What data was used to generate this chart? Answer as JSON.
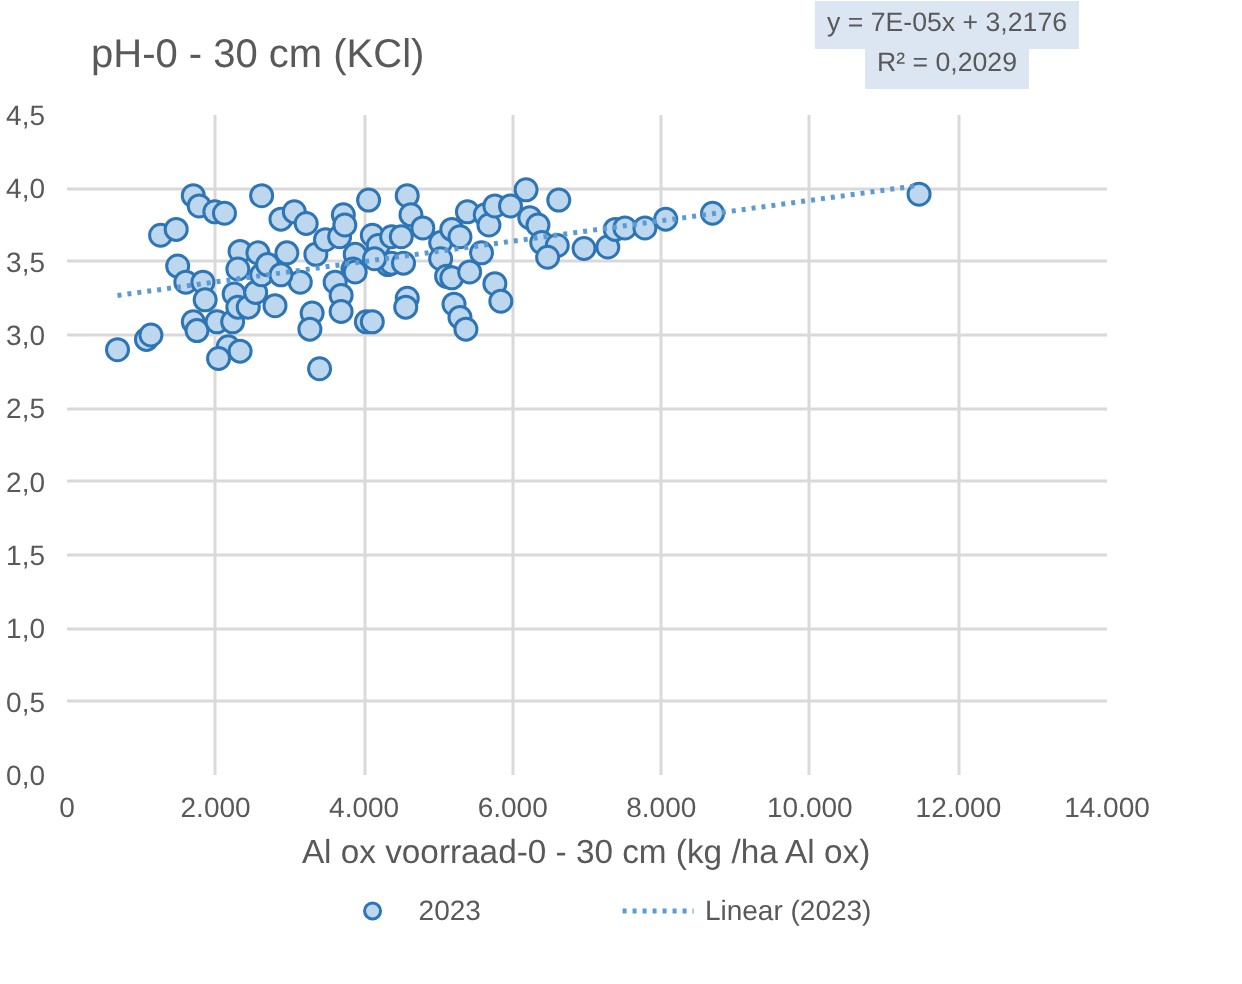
{
  "chart_data": {
    "type": "scatter",
    "title": "pH-0 - 30 cm (KCl)",
    "xlabel": "Al ox voorraad-0 - 30 cm (kg /ha Al ox)",
    "annotations": [
      "y = 7E-05x + 3,2176",
      "R² = 0,2029"
    ],
    "xlim": [
      0,
      14000
    ],
    "ylim": [
      0,
      4.5
    ],
    "xticks": [
      0,
      {
        "value": 2000,
        "label": "2.000"
      },
      {
        "value": 4000,
        "label": "4.000"
      },
      {
        "value": 6000,
        "label": "6.000"
      },
      {
        "value": 8000,
        "label": "8.000"
      },
      {
        "value": 10000,
        "label": "10.000"
      },
      {
        "value": 12000,
        "label": "12.000"
      },
      {
        "value": 14000,
        "label": "14.000"
      }
    ],
    "yticks": [
      {
        "value": 0,
        "label": "0,0"
      },
      {
        "value": 0.5,
        "label": "0,5"
      },
      {
        "value": 1,
        "label": "1,0"
      },
      {
        "value": 1.5,
        "label": "1,5"
      },
      {
        "value": 2,
        "label": "2,0"
      },
      {
        "value": 2.5,
        "label": "2,5"
      },
      {
        "value": 3,
        "label": "3,0"
      },
      {
        "value": 3.5,
        "label": "3,5"
      },
      {
        "value": 4,
        "label": "4,0"
      },
      {
        "value": 4.5,
        "label": "4,5"
      }
    ],
    "grid": true,
    "legend": "bottom",
    "marker": "circle",
    "series": [
      {
        "name": "2023",
        "type": "scatter",
        "color": "#bdd7ee",
        "x": [
          1700,
          1780,
          1990,
          2120,
          2620,
          1260,
          1470,
          1490,
          1600,
          1830,
          1860,
          1700,
          1750,
          2020,
          2230,
          2250,
          2300,
          2440,
          2170,
          2330,
          2040,
          680,
          1070,
          1130,
          2800,
          2540,
          2620,
          2330,
          2300,
          2570,
          2880,
          3060,
          3220,
          2960,
          3140,
          3300,
          3270,
          3400,
          3350,
          3480,
          3670,
          3720,
          3740,
          3610,
          3690,
          3690,
          3880,
          4060,
          4030,
          4110,
          4110,
          4320,
          4370,
          3850,
          2700,
          2880,
          4580,
          4630,
          4790,
          3880,
          4190,
          4140,
          4530,
          4370,
          4500,
          4580,
          4560,
          5030,
          5030,
          5110,
          5180,
          5180,
          5290,
          5390,
          5420,
          5580,
          5630,
          5680,
          5760,
          5760,
          5840,
          5210,
          5290,
          5370,
          5970,
          6180,
          6230,
          6340,
          6390,
          6600,
          6470,
          6620,
          6960,
          7280,
          7380,
          7510,
          7780,
          8060,
          8690,
          11470
        ],
        "values": [
          3.95,
          3.88,
          3.84,
          3.83,
          3.95,
          3.68,
          3.72,
          3.47,
          3.36,
          3.36,
          3.24,
          3.09,
          3.03,
          3.09,
          3.09,
          3.28,
          3.19,
          3.19,
          2.92,
          2.89,
          2.84,
          2.9,
          2.97,
          3.0,
          3.2,
          3.29,
          3.41,
          3.57,
          3.45,
          3.56,
          3.79,
          3.84,
          3.76,
          3.56,
          3.36,
          3.15,
          3.04,
          2.77,
          3.55,
          3.65,
          3.67,
          3.82,
          3.75,
          3.36,
          3.27,
          3.16,
          3.55,
          3.92,
          3.09,
          3.09,
          3.68,
          3.48,
          3.49,
          3.45,
          3.48,
          3.41,
          3.95,
          3.82,
          3.73,
          3.43,
          3.61,
          3.52,
          3.49,
          3.67,
          3.67,
          3.25,
          3.19,
          3.63,
          3.52,
          3.4,
          3.39,
          3.72,
          3.67,
          3.84,
          3.43,
          3.56,
          3.82,
          3.75,
          3.88,
          3.35,
          3.23,
          3.21,
          3.12,
          3.04,
          3.88,
          3.99,
          3.8,
          3.75,
          3.63,
          3.61,
          3.53,
          3.92,
          3.59,
          3.6,
          3.72,
          3.73,
          3.73,
          3.79,
          3.83,
          3.96
        ]
      },
      {
        "name": "Linear (2023)",
        "type": "line",
        "color": "#5b9bd5",
        "line_style": "dotted",
        "marker": "none",
        "x": [
          680,
          11470
        ],
        "values": [
          3.27,
          4.02
        ]
      }
    ]
  }
}
